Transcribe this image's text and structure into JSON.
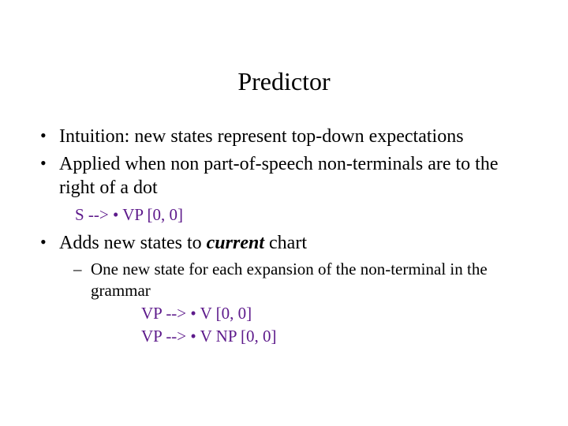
{
  "colors": {
    "text": "#000000",
    "background": "#ffffff",
    "accent": "#5d1a8b"
  },
  "typography": {
    "title_fontsize": 32,
    "body_fontsize": 24,
    "example_fontsize": 21,
    "family": "Times New Roman"
  },
  "title": "Predictor",
  "bullets": {
    "b1": "Intuition:  new states represent top-down expectations",
    "b2": "Applied when non part-of-speech non-terminals are to the right of a dot",
    "example1": "S  --> • VP [0, 0]",
    "b3_prefix": "Adds new states to ",
    "b3_emph": "current",
    "b3_suffix": " chart",
    "sub1": "One new state for each expansion of the non-terminal in the grammar",
    "sub1_ex1": "VP --> • V [0, 0]",
    "sub1_ex2": "VP --> • V NP [0, 0]"
  }
}
